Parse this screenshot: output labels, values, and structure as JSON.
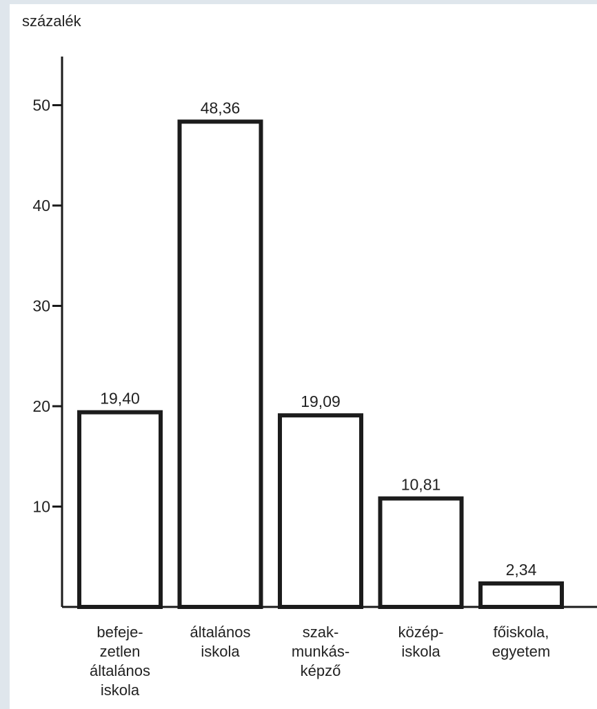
{
  "chart_data": {
    "type": "bar",
    "ylabel": "százalék",
    "xlabel": "",
    "ylim": [
      0,
      55
    ],
    "yticks": [
      10,
      20,
      30,
      40,
      50
    ],
    "grid": false,
    "categories": [
      "befeje-\nzetlen\náltalános\niskola",
      "általános\niskola",
      "szak-\nmunkás-\nképző",
      "közép-\niskola",
      "főiskola,\negyetem"
    ],
    "values": [
      19.4,
      48.36,
      19.09,
      10.81,
      2.34
    ],
    "value_labels": [
      "19,40",
      "48,36",
      "19,09",
      "10,81",
      "2,34"
    ],
    "colors": {
      "background": "#dfe6ec",
      "paper": "#ffffff",
      "bar_fill": "#ffffff",
      "bar_stroke": "#1c1c1c",
      "axis": "#1a1a1a",
      "text": "#222222"
    }
  }
}
